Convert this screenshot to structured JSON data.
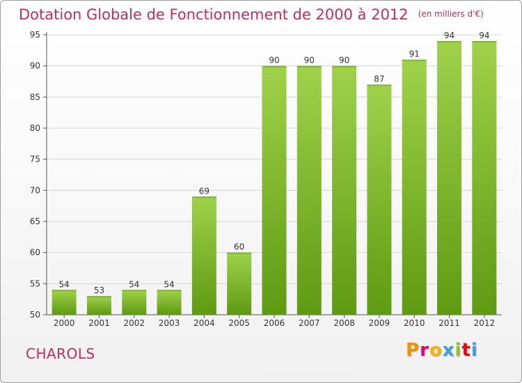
{
  "header": {
    "title": "Dotation Globale de Fonctionnement de 2000 à 2012",
    "unit": "(en milliers d'€)"
  },
  "footer": {
    "commune": "CHAROLS",
    "logo_letters": [
      "P",
      "r",
      "o",
      "x",
      "i",
      "t",
      "i"
    ]
  },
  "colors": {
    "title": "#c32c5b",
    "bar_top": "#9fd24a",
    "bar_bottom": "#5e9a12",
    "grid": "#d3d3d3"
  },
  "chart_data": {
    "type": "bar",
    "title": "Dotation Globale de Fonctionnement de 2000 à 2012",
    "subtitle": "(en milliers d'€)",
    "categories": [
      "2000",
      "2001",
      "2002",
      "2003",
      "2004",
      "2005",
      "2006",
      "2007",
      "2008",
      "2009",
      "2010",
      "2011",
      "2012"
    ],
    "values": [
      54,
      53,
      54,
      54,
      69,
      60,
      90,
      90,
      90,
      87,
      91,
      94,
      94
    ],
    "ylim": [
      50,
      95
    ],
    "yticks": [
      50,
      55,
      60,
      65,
      70,
      75,
      80,
      85,
      90,
      95
    ],
    "grid": true,
    "xlabel": "",
    "ylabel": ""
  }
}
